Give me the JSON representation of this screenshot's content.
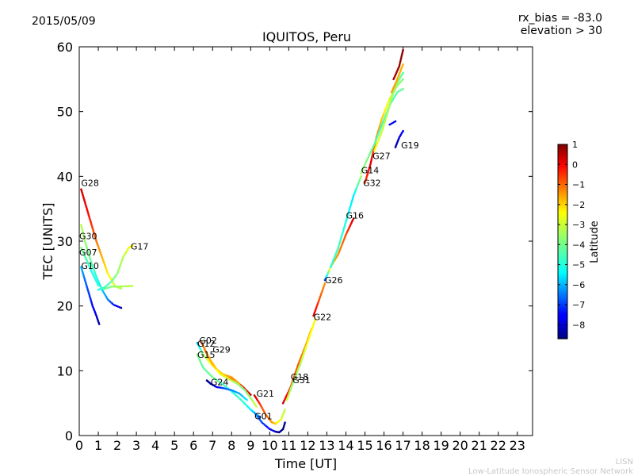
{
  "header": {
    "date": "2015/05/09",
    "rx_bias": "rx_bias = -83.0",
    "elevation": "elevation > 30"
  },
  "footer": {
    "line1": "LISN",
    "line2": "Low-Latitude Ionospheric Sensor Network"
  },
  "colorbar": {
    "label": "Latitude",
    "range": [
      -8.7,
      1.0
    ],
    "ticks": [
      "1",
      "0",
      "−1",
      "−2",
      "−3",
      "−4",
      "−5",
      "−6",
      "−7",
      "−8"
    ],
    "tick_values": [
      1,
      0,
      -1,
      -2,
      -3,
      -4,
      -5,
      -6,
      -7,
      -8
    ]
  },
  "chart_data": {
    "type": "scatter",
    "title": "IQUITOS, Peru",
    "xlabel": "Time [UT]",
    "ylabel": "TEC [UNITS]",
    "xlim": [
      0,
      23.8
    ],
    "ylim": [
      0,
      60
    ],
    "xticks": [
      0,
      1,
      2,
      3,
      4,
      5,
      6,
      7,
      8,
      9,
      10,
      11,
      12,
      13,
      14,
      15,
      16,
      17,
      18,
      19,
      20,
      21,
      22,
      23
    ],
    "yticks": [
      0,
      10,
      20,
      30,
      40,
      50,
      60
    ],
    "grid": false,
    "series": [
      {
        "name": "G28",
        "label_at": [
          0.1,
          38.5
        ],
        "points": [
          [
            0.1,
            38,
            0.4
          ],
          [
            0.4,
            35,
            0
          ],
          [
            0.7,
            32,
            -0.6
          ],
          [
            0.9,
            30,
            -1.1
          ],
          [
            1.2,
            27.5,
            -1.7
          ],
          [
            1.5,
            25,
            -2.3
          ],
          [
            1.9,
            23,
            -3.0
          ],
          [
            2.2,
            22.7,
            -3.4
          ]
        ]
      },
      {
        "name": "G30",
        "label_at": [
          0.0,
          30.3
        ],
        "points": [
          [
            0.1,
            32.5,
            -3.2
          ],
          [
            0.3,
            30,
            -3.6
          ],
          [
            0.6,
            27,
            -4.2
          ],
          [
            0.9,
            24.5,
            -5.0
          ],
          [
            1.2,
            22.5,
            -5.8
          ],
          [
            1.5,
            21,
            -6.4
          ],
          [
            1.8,
            20.2,
            -7.3
          ],
          [
            2.2,
            19.7,
            -8.3
          ]
        ]
      },
      {
        "name": "G17",
        "label_at": [
          2.7,
          28.7
        ],
        "points": [
          [
            1.0,
            22.5,
            -5.2
          ],
          [
            1.3,
            22.8,
            -4.7
          ],
          [
            1.7,
            23.8,
            -4.1
          ],
          [
            2.0,
            25,
            -3.7
          ],
          [
            2.3,
            27.5,
            -3.2
          ],
          [
            2.6,
            29,
            -2.6
          ],
          [
            2.8,
            29.3,
            -2.2
          ]
        ]
      },
      {
        "name": "G07",
        "label_at": [
          0.0,
          27.8
        ],
        "points": [
          [
            0.1,
            29,
            -3.9
          ],
          [
            0.4,
            27,
            -4.6
          ],
          [
            0.7,
            25,
            -5.2
          ],
          [
            1.0,
            23.2,
            -4.9
          ],
          [
            1.3,
            22.6,
            -4.3
          ],
          [
            1.7,
            23,
            -3.7
          ],
          [
            2.1,
            23,
            -3.3
          ],
          [
            2.8,
            23.1,
            -3.2
          ]
        ]
      },
      {
        "name": "G10",
        "label_at": [
          0.1,
          25.7
        ],
        "points": [
          [
            0.1,
            26,
            -5.9
          ],
          [
            0.3,
            24,
            -6.6
          ],
          [
            0.5,
            22,
            -7.0
          ],
          [
            0.7,
            20,
            -7.4
          ],
          [
            0.9,
            18.5,
            -7.9
          ],
          [
            1.05,
            17.2,
            -8.5
          ]
        ]
      },
      {
        "name": "G02",
        "label_at": [
          6.3,
          14.2
        ],
        "points": [
          [
            6.4,
            14.5,
            -1.0
          ],
          [
            6.8,
            12,
            -1.5
          ],
          [
            7.2,
            10.3,
            -1.7
          ],
          [
            7.7,
            9,
            -1.2
          ],
          [
            8.2,
            8.5,
            -1.0
          ],
          [
            8.6,
            7.5,
            -0.5
          ],
          [
            9.0,
            6.3,
            0.3
          ]
        ]
      },
      {
        "name": "G12",
        "label_at": [
          6.2,
          13.7
        ],
        "points": [
          [
            6.2,
            14.3,
            -6.3
          ],
          [
            6.5,
            12.5,
            -3.7
          ],
          [
            7.0,
            10.8,
            -2.2
          ],
          [
            7.5,
            9.5,
            -1.9
          ],
          [
            8.0,
            9,
            -1.4
          ],
          [
            8.4,
            8,
            -1.6
          ]
        ]
      },
      {
        "name": "G29",
        "label_at": [
          7.0,
          12.8
        ],
        "points": [
          [
            6.6,
            13.2,
            -1.2
          ],
          [
            7.0,
            11,
            -1.8
          ],
          [
            7.4,
            9.5,
            -2.5
          ],
          [
            7.8,
            8.8,
            -2.9
          ],
          [
            8.3,
            8,
            -3.6
          ],
          [
            8.7,
            7,
            -4.1
          ],
          [
            9.0,
            5.8,
            -3.5
          ],
          [
            9.3,
            4.5,
            -3.0
          ]
        ]
      },
      {
        "name": "G15",
        "label_at": [
          6.2,
          12.0
        ],
        "points": [
          [
            6.2,
            12.5,
            -3.9
          ],
          [
            6.5,
            10.5,
            -4.3
          ],
          [
            7.0,
            9,
            -4.0
          ],
          [
            7.5,
            8,
            -4.6
          ],
          [
            8.0,
            6.8,
            -5.0
          ],
          [
            8.5,
            5.5,
            -4.7
          ],
          [
            9.0,
            4,
            -5.5
          ],
          [
            9.5,
            2.8,
            -6.7
          ]
        ]
      },
      {
        "name": "G24",
        "label_at": [
          6.9,
          7.8
        ],
        "points": [
          [
            6.7,
            8.5,
            -8.6
          ],
          [
            6.9,
            8.0,
            -8.2
          ],
          [
            7.2,
            7.5,
            -7.8
          ],
          [
            7.6,
            7.3,
            -6.8
          ],
          [
            8.0,
            7.0,
            -6.4
          ],
          [
            8.4,
            6.5,
            -6.1
          ],
          [
            8.8,
            5.5,
            -5.5
          ]
        ]
      },
      {
        "name": "G21",
        "label_at": [
          9.3,
          6.0
        ],
        "points": [
          [
            9.2,
            6.2,
            0.5
          ],
          [
            9.5,
            4.8,
            -0.6
          ],
          [
            9.8,
            3.2,
            -1.0
          ],
          [
            10.1,
            2.1,
            -1.4
          ],
          [
            10.3,
            1.8,
            -2.0
          ],
          [
            10.6,
            2.5,
            -2.8
          ],
          [
            10.8,
            4.0,
            -3.2
          ]
        ]
      },
      {
        "name": "G01",
        "label_at": [
          9.2,
          2.5
        ],
        "points": [
          [
            9.2,
            3.5,
            -6.1
          ],
          [
            9.6,
            2.0,
            -7.0
          ],
          [
            10.0,
            1.0,
            -7.5
          ],
          [
            10.3,
            0.6,
            -8.2
          ],
          [
            10.5,
            0.5,
            -8.6
          ],
          [
            10.7,
            1.0,
            -8.7
          ],
          [
            10.8,
            2.0,
            -8.4
          ]
        ]
      },
      {
        "name": "G18",
        "label_at": [
          11.1,
          8.6
        ],
        "points": [
          [
            10.7,
            5,
            0.4
          ],
          [
            11.1,
            7.5,
            -0.6
          ],
          [
            11.5,
            11,
            -0.9
          ],
          [
            11.9,
            14,
            -1.3
          ],
          [
            12.2,
            16.5,
            -1.6
          ]
        ]
      },
      {
        "name": "G31",
        "label_at": [
          11.2,
          8.1
        ],
        "points": [
          [
            10.9,
            5.5,
            -3.0
          ],
          [
            11.2,
            8,
            -3.7
          ],
          [
            11.6,
            11,
            -3.3
          ],
          [
            12.0,
            14.5,
            -2.5
          ],
          [
            12.4,
            18.0,
            -2.3
          ]
        ]
      },
      {
        "name": "G22",
        "label_at": [
          12.3,
          17.8
        ],
        "points": [
          [
            12.3,
            18.5,
            0.3
          ],
          [
            12.6,
            21,
            -0.8
          ],
          [
            12.9,
            23.5,
            -1.4
          ]
        ]
      },
      {
        "name": "G26",
        "label_at": [
          12.9,
          23.5
        ],
        "points": [
          [
            12.9,
            24,
            -7.0
          ],
          [
            13.2,
            26,
            -2.0
          ],
          [
            13.6,
            28,
            -1.3
          ],
          [
            14.0,
            31,
            -0.8
          ],
          [
            14.4,
            33.5,
            0.4
          ]
        ]
      },
      {
        "name": "G16",
        "label_at": [
          14.0,
          33.5
        ],
        "points": [
          [
            13.2,
            26,
            -5.0
          ],
          [
            13.6,
            29,
            -4.6
          ],
          [
            14.0,
            33,
            -5.2
          ],
          [
            14.4,
            37,
            -5.6
          ],
          [
            14.8,
            40,
            -3.5
          ]
        ]
      },
      {
        "name": "G32",
        "label_at": [
          14.9,
          38.5
        ],
        "points": [
          [
            15.0,
            39,
            -0.6
          ],
          [
            15.3,
            42,
            0.2
          ],
          [
            15.6,
            46,
            -1.2
          ],
          [
            15.9,
            49,
            -1.9
          ],
          [
            16.3,
            52,
            -2.8
          ],
          [
            16.7,
            54,
            -3.4
          ],
          [
            17.0,
            55,
            -4.0
          ]
        ]
      },
      {
        "name": "G14",
        "label_at": [
          14.8,
          40.5
        ],
        "points": [
          [
            14.8,
            40.5,
            -3.5
          ],
          [
            15.1,
            42.5,
            -3.9
          ],
          [
            15.5,
            45,
            -4.3
          ],
          [
            15.9,
            48,
            -4.7
          ],
          [
            16.3,
            51,
            -4.5
          ],
          [
            16.7,
            53,
            -4.3
          ],
          [
            17.0,
            53.5,
            -4.1
          ]
        ]
      },
      {
        "name": "G27",
        "label_at": [
          15.4,
          42.7
        ],
        "points": [
          [
            15.5,
            44,
            -2.3
          ],
          [
            15.9,
            47,
            -3.0
          ],
          [
            16.2,
            50,
            -3.4
          ],
          [
            16.5,
            53,
            -3.6
          ],
          [
            16.8,
            55,
            -3.9
          ],
          [
            17.0,
            56,
            -4.4
          ]
        ]
      },
      {
        "name": "G19",
        "label_at": [
          16.9,
          44.3
        ],
        "points": [
          [
            16.6,
            44.5,
            -8.4
          ],
          [
            16.8,
            46,
            -7.9
          ],
          [
            17.0,
            47,
            -7.5
          ]
        ]
      },
      {
        "name": "",
        "label_at": null,
        "points": [
          [
            16.5,
            55,
            0.6
          ],
          [
            16.8,
            57,
            0.8
          ],
          [
            17.0,
            59.5,
            0.9
          ]
        ]
      },
      {
        "name": "",
        "label_at": null,
        "points": [
          [
            16.3,
            48,
            -7.6
          ],
          [
            16.6,
            48.5,
            -7.9
          ]
        ]
      },
      {
        "name": "",
        "label_at": null,
        "points": [
          [
            16.4,
            53,
            -1.5
          ],
          [
            16.7,
            55,
            -1.6
          ],
          [
            17.0,
            57.3,
            -1.7
          ]
        ]
      }
    ]
  }
}
